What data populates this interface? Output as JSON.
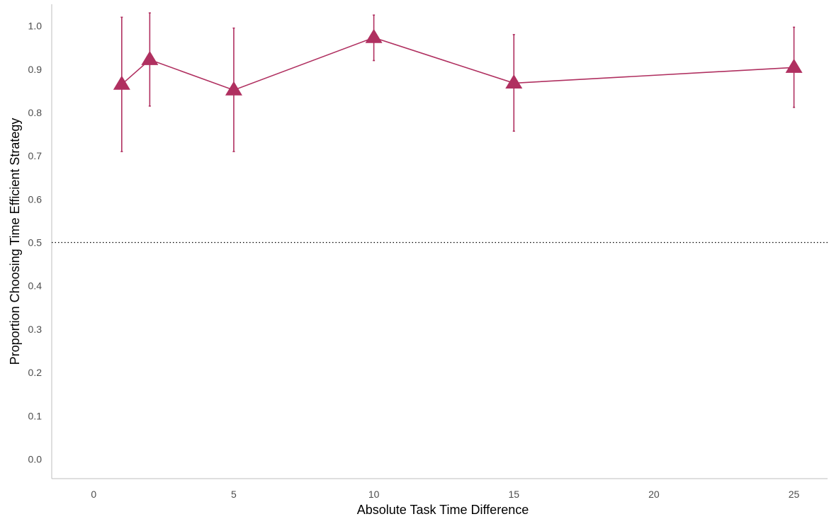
{
  "chart_data": {
    "type": "line",
    "title": "",
    "xlabel": "Absolute Task Time Difference",
    "ylabel": "Proportion Choosing Time Efficient Strategy",
    "xlim": [
      -1.5,
      26.2
    ],
    "ylim": [
      -0.045,
      1.05
    ],
    "x_ticks": [
      0,
      5,
      10,
      15,
      20,
      25
    ],
    "y_ticks": [
      0.0,
      0.1,
      0.2,
      0.3,
      0.4,
      0.5,
      0.6,
      0.7,
      0.8,
      0.9,
      1.0
    ],
    "y_tick_labels": [
      "0.0",
      "0.1",
      "0.2",
      "0.3",
      "0.4",
      "0.5",
      "0.6",
      "0.7",
      "0.8",
      "0.9",
      "1.0"
    ],
    "x_tick_labels": [
      "0",
      "5",
      "10",
      "15",
      "20",
      "25"
    ],
    "grid": false,
    "reference_line": {
      "y": 0.5,
      "style": "dotted",
      "color": "#000000"
    },
    "series": [
      {
        "color": "#b03060",
        "marker": "triangle",
        "points": [
          {
            "x": 1,
            "y": 0.865,
            "ymin": 0.71,
            "ymax": 1.02
          },
          {
            "x": 2,
            "y": 0.922,
            "ymin": 0.815,
            "ymax": 1.03
          },
          {
            "x": 5,
            "y": 0.852,
            "ymin": 0.71,
            "ymax": 0.995
          },
          {
            "x": 10,
            "y": 0.973,
            "ymin": 0.92,
            "ymax": 1.025
          },
          {
            "x": 15,
            "y": 0.868,
            "ymin": 0.757,
            "ymax": 0.98
          },
          {
            "x": 25,
            "y": 0.904,
            "ymin": 0.812,
            "ymax": 0.997
          }
        ]
      }
    ]
  }
}
